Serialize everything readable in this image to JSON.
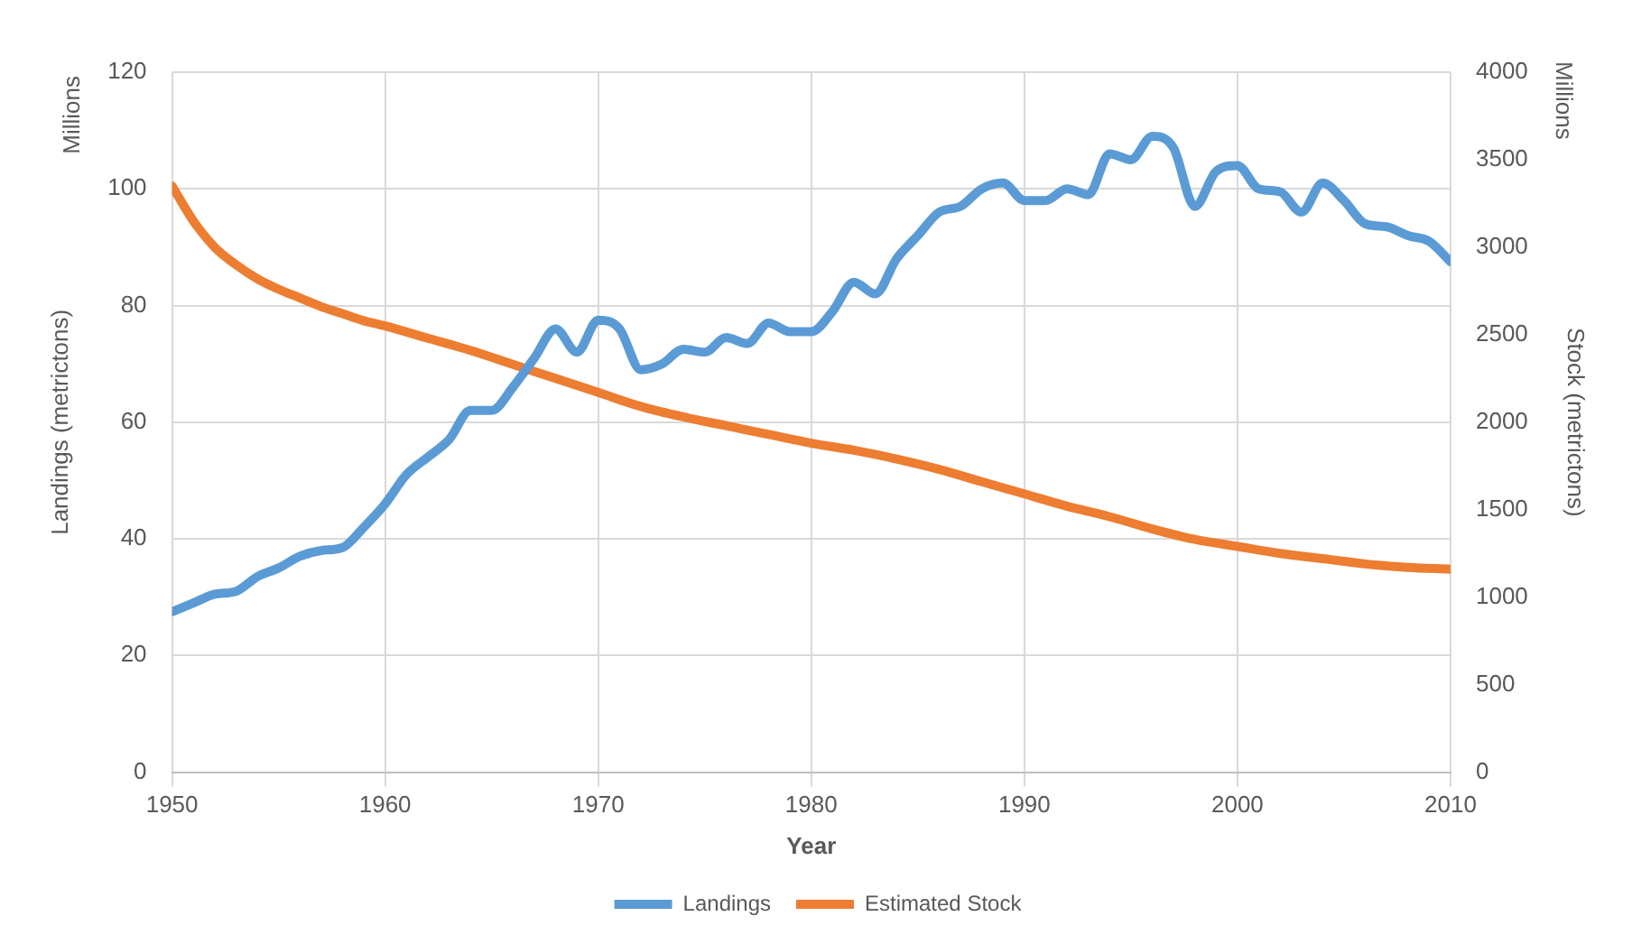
{
  "chart_data": {
    "type": "line",
    "xlabel": "Year",
    "ylabel": "Landings (metrictons)",
    "y2label": "Stock (metrictons)",
    "annotations": [
      "Millions",
      "Millions"
    ],
    "xlim": [
      1950,
      2010
    ],
    "xticks": [
      1950,
      1960,
      1970,
      1980,
      1990,
      2000,
      2010
    ],
    "ylim": [
      0,
      120
    ],
    "yticks": [
      0,
      20,
      40,
      60,
      80,
      100,
      120
    ],
    "y2lim": [
      0,
      4000
    ],
    "y2ticks": [
      0,
      500,
      1000,
      1500,
      2000,
      2500,
      3000,
      3500,
      4000
    ],
    "grid": true,
    "legend": "bottom",
    "marker": "none",
    "line_style": "solid",
    "series": [
      {
        "name": "Landings",
        "color": "#5b9bd5",
        "x": [
          1950,
          1951,
          1952,
          1953,
          1954,
          1955,
          1956,
          1957,
          1958,
          1959,
          1960,
          1961,
          1962,
          1963,
          1964,
          1965,
          1966,
          1967,
          1968,
          1969,
          1970,
          1971,
          1972,
          1973,
          1974,
          1975,
          1976,
          1977,
          1978,
          1979,
          1980,
          1981,
          1982,
          1983,
          1984,
          1985,
          1986,
          1987,
          1988,
          1989,
          1990,
          1991,
          1992,
          1993,
          1994,
          1995,
          1996,
          1997,
          1998,
          1999,
          2000,
          2001,
          2002,
          2003,
          2004,
          2005,
          2006,
          2007,
          2008,
          2009,
          2010
        ],
        "values": [
          27.5,
          29,
          30.5,
          31,
          33.5,
          35,
          37,
          38,
          38.5,
          42,
          46,
          51,
          54,
          57,
          62,
          62,
          66,
          71,
          76,
          72,
          77.5,
          76,
          69,
          70,
          72.5,
          72,
          74.5,
          73.5,
          77,
          75.5,
          75.5,
          79,
          84,
          82,
          88,
          92,
          96,
          97,
          100,
          101,
          98,
          98,
          100,
          99,
          106,
          105,
          109,
          107,
          97,
          103,
          104,
          100,
          99.5,
          96,
          101,
          98,
          94,
          93.5,
          92,
          91,
          87.5
        ]
      },
      {
        "name": "Estimated Stock",
        "color": "#ed7d31",
        "axis": "y2",
        "x": [
          1950,
          1951,
          1952,
          1953,
          1954,
          1955,
          1956,
          1957,
          1958,
          1959,
          1960,
          1962,
          1964,
          1966,
          1968,
          1970,
          1972,
          1974,
          1976,
          1978,
          1980,
          1982,
          1984,
          1986,
          1988,
          1990,
          1992,
          1994,
          1996,
          1998,
          2000,
          2002,
          2004,
          2006,
          2008,
          2010
        ],
        "values": [
          3350,
          3150,
          3000,
          2900,
          2820,
          2760,
          2710,
          2660,
          2620,
          2580,
          2550,
          2480,
          2410,
          2330,
          2250,
          2170,
          2090,
          2030,
          1980,
          1930,
          1880,
          1840,
          1790,
          1730,
          1660,
          1590,
          1520,
          1460,
          1390,
          1330,
          1290,
          1250,
          1220,
          1190,
          1170,
          1160
        ]
      }
    ]
  }
}
